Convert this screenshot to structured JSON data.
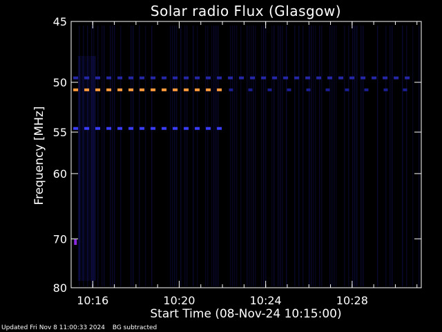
{
  "chart_data": {
    "type": "heatmap",
    "title": "Solar radio Flux (Glasgow)",
    "xlabel": "Start Time (08-Nov-24 10:15:00)",
    "ylabel": "Frequency [MHz]",
    "x_range_minutes": [
      10.25,
      10.5167
    ],
    "x_unit": "time of day (hours:minutes)",
    "x_ticks": [
      {
        "label": "10:16",
        "minutes": 16
      },
      {
        "label": "10:20",
        "minutes": 20
      },
      {
        "label": "10:24",
        "minutes": 24
      },
      {
        "label": "10:28",
        "minutes": 28
      }
    ],
    "x_start_minutes": 15.0,
    "x_end_minutes": 31.2,
    "ylim": [
      45,
      80
    ],
    "y_ticks": [
      45,
      50,
      55,
      60,
      70,
      80
    ],
    "y_scale": "reciprocal",
    "grid": false,
    "background_color": "#000000",
    "bands": [
      {
        "freq_mhz": 50.7,
        "start_min": 15.1,
        "end_min": 22.2,
        "color": "#ff9a3c",
        "style": "dashed"
      },
      {
        "freq_mhz": 54.6,
        "start_min": 15.1,
        "end_min": 22.2,
        "color": "#3a3cff",
        "style": "dashed"
      },
      {
        "freq_mhz": 49.6,
        "start_min": 15.1,
        "end_min": 30.8,
        "color": "#2428a8",
        "style": "dashed"
      },
      {
        "freq_mhz": 50.7,
        "start_min": 22.3,
        "end_min": 30.8,
        "color": "#1a1e90",
        "style": "sparse"
      }
    ],
    "hotspots": [
      {
        "freq_mhz": 70.6,
        "minute": 15.2,
        "color": "#8a2be2"
      }
    ]
  },
  "footer": {
    "updated": "Updated Fri Nov  8 11:00:33 2024",
    "bg_note": "BG subtracted"
  },
  "colors": {
    "axis": "#ffffff",
    "noise": "#0a0a3a"
  }
}
